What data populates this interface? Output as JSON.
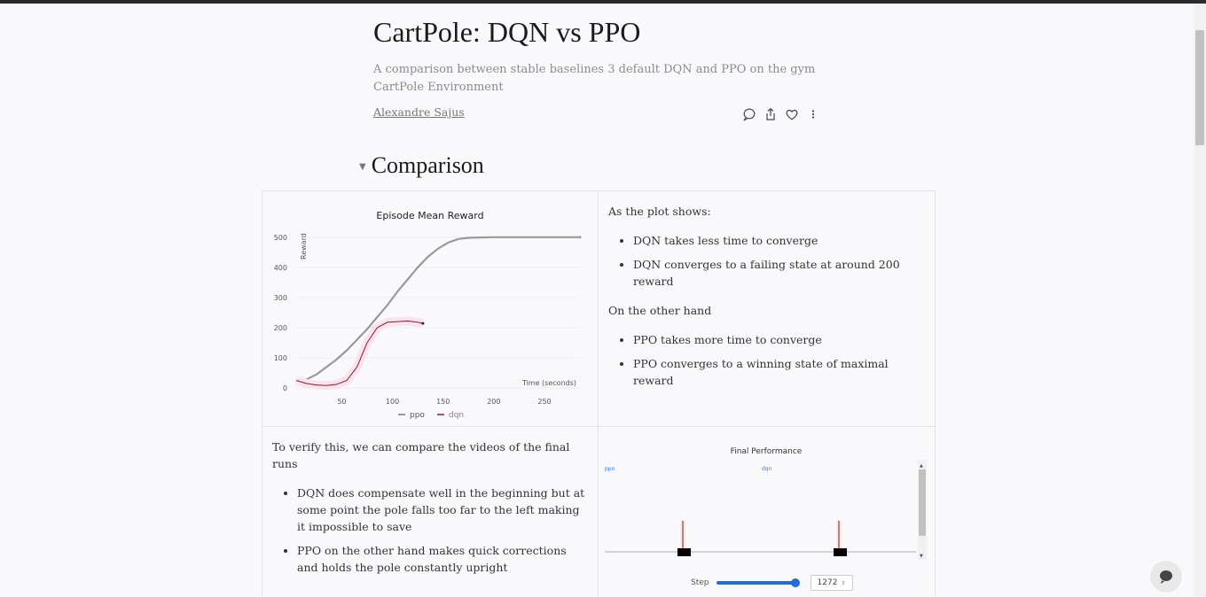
{
  "report": {
    "title": "CartPole: DQN vs PPO",
    "subtitle": "A comparison between stable baselines 3 default DQN and PPO on the gym CartPole Environment",
    "author": "Alexandre Sajus"
  },
  "actions": [
    {
      "icon": "comment-icon"
    },
    {
      "icon": "share-icon"
    },
    {
      "icon": "heart-icon"
    },
    {
      "icon": "more-icon"
    }
  ],
  "section": {
    "title": "Comparison"
  },
  "right_text": {
    "intro": "As the plot shows:",
    "dqn_points": [
      "DQN takes less time to converge",
      "DQN converges to a failing state at around 200 reward"
    ],
    "other_hand": "On the other hand",
    "ppo_points": [
      "PPO takes more time to converge",
      "PPO converges to a winning state of maximal reward"
    ]
  },
  "left_text": {
    "intro": "To verify this, we can compare the videos of the final runs",
    "points": [
      "DQN does compensate well in the beginning but at some point the pole falls too far to the left making it impossible to save",
      "PPO on the other hand makes quick corrections and holds the pole constantly upright"
    ]
  },
  "chart_data": {
    "type": "line",
    "title": "Episode Mean Reward",
    "xlabel": "Time (seconds)",
    "ylabel": "Reward",
    "xlim": [
      5,
      285
    ],
    "ylim": [
      0,
      520
    ],
    "xticks": [
      50,
      100,
      150,
      200,
      250
    ],
    "yticks": [
      0,
      100,
      200,
      300,
      400,
      500
    ],
    "legend": "bottom",
    "series": [
      {
        "name": "ppo",
        "color": "#999999",
        "x": [
          5,
          15,
          25,
          35,
          45,
          55,
          65,
          75,
          85,
          95,
          105,
          115,
          125,
          135,
          145,
          155,
          165,
          175,
          185,
          200,
          220,
          240,
          260,
          285
        ],
        "y": [
          20,
          28,
          45,
          70,
          95,
          125,
          160,
          195,
          235,
          275,
          320,
          360,
          400,
          435,
          462,
          482,
          494,
          498,
          499,
          500,
          500,
          500,
          500,
          500
        ]
      },
      {
        "name": "dqn",
        "color": "#8b1a2f",
        "x": [
          5,
          15,
          25,
          35,
          45,
          55,
          65,
          75,
          85,
          95,
          105,
          115,
          125,
          130
        ],
        "y": [
          25,
          15,
          10,
          8,
          12,
          25,
          70,
          150,
          200,
          218,
          220,
          222,
          218,
          214
        ]
      }
    ]
  },
  "panel": {
    "title": "Final Performance",
    "labels": [
      "ppo",
      "dqn"
    ],
    "step_label": "Step",
    "step_value": "1272"
  }
}
